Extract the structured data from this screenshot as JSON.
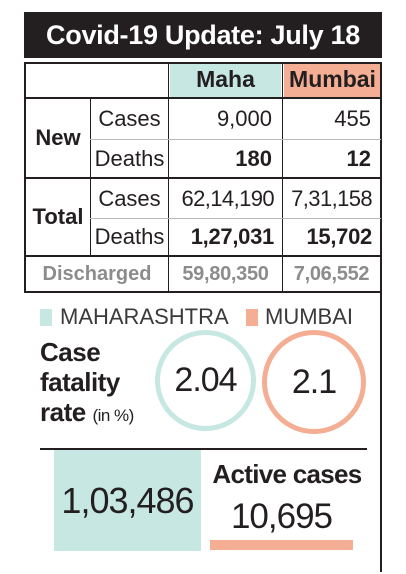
{
  "title": "Covid-19 Update: July 18",
  "columns": {
    "maha": "Maha",
    "mumbai": "Mumbai"
  },
  "groups": {
    "new": {
      "label": "New",
      "rows": [
        {
          "label": "Cases",
          "maha": "9,000",
          "mumbai": "455"
        },
        {
          "label": "Deaths",
          "maha": "180",
          "mumbai": "12"
        }
      ]
    },
    "total": {
      "label": "Total",
      "rows": [
        {
          "label": "Cases",
          "maha": "62,14,190",
          "mumbai": "7,31,158"
        },
        {
          "label": "Deaths",
          "maha": "1,27,031",
          "mumbai": "15,702"
        }
      ]
    }
  },
  "discharged": {
    "label": "Discharged",
    "maha": "59,80,350",
    "mumbai": "7,06,552"
  },
  "legend": {
    "maha": {
      "label": "MAHARASHTRA",
      "color": "#c7e8e2"
    },
    "mumbai": {
      "label": "MUMBAI",
      "color": "#f3ae93"
    }
  },
  "cfr": {
    "line1": "Case",
    "line2": "fatality",
    "line3": "rate",
    "unit": "(in %)",
    "maha": "2.04",
    "mumbai": "2.1"
  },
  "active": {
    "label": "Active cases",
    "maha": "1,03,486",
    "mumbai": "10,695"
  }
}
